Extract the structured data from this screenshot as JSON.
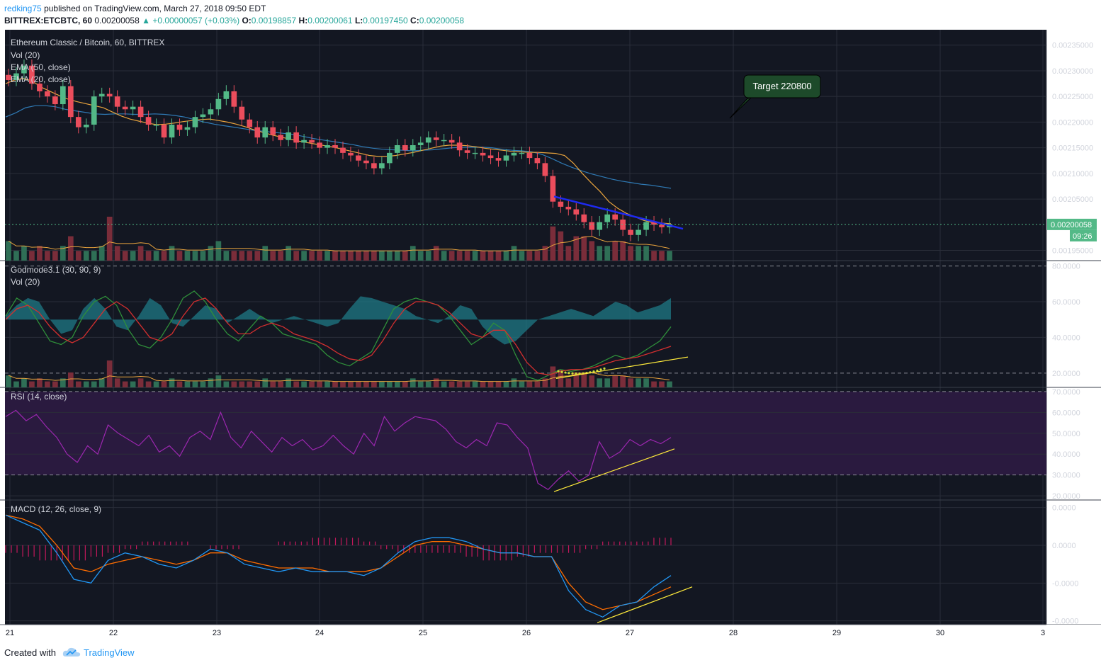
{
  "header": {
    "author": "redking75",
    "published": "published on TradingView.com, March 27, 2018 09:50 EDT",
    "symbol": "BITTREX:ETCBTC, 60",
    "last": "0.00200058",
    "change": "▲ +0.00000057 (+0.03%)",
    "o_label": "O:",
    "o": "0.00198857",
    "h_label": "H:",
    "h": "0.00200061",
    "l_label": "L:",
    "l": "0.00197450",
    "c_label": "C:",
    "c": "0.00200058"
  },
  "footer": {
    "created": "Created with",
    "brand": "TradingView"
  },
  "colors": {
    "background": "#131722",
    "grid": "#2a2e39",
    "up": "#53b987",
    "down": "#eb4d5c",
    "ema50": "#2f7ab5",
    "ema20": "#e8a33d",
    "volma": "#e8a33d",
    "god_green": "#2f8f3a",
    "god_red": "#d32f2f",
    "god_fill": "#1f7a85",
    "rsi": "#9c27b0",
    "rsi_band": "#2a1a3f",
    "macd": "#2196f3",
    "signal": "#ff6d00",
    "hist": "#c2185b",
    "trend_yellow": "#ffeb3b",
    "trend_blue": "#1e2af0",
    "callout": "#1d4a2a"
  },
  "icons": {
    "logo": "tradingview-cloud-icon"
  },
  "chart_data": {
    "type": "candlestick",
    "title": "Ethereum Classic / Bitcoin, 60, BITTREX",
    "x_ticks": [
      "21",
      "22",
      "23",
      "24",
      "25",
      "26",
      "27",
      "28",
      "29",
      "30",
      "3"
    ],
    "price_axis": {
      "ticks": [
        "0.00235000",
        "0.00230000",
        "0.00225000",
        "0.00220000",
        "0.00215000",
        "0.00210000",
        "0.00205000",
        "0.00195000"
      ],
      "ylim": [
        0.00193,
        0.00238
      ],
      "last_price_label": "0.00200058",
      "countdown_label": "09:26"
    },
    "price_legend": [
      "Vol (20)",
      "EMA (50, close)",
      "EMA (20, close)"
    ],
    "close_series": [
      0.002282,
      0.002295,
      0.00231,
      0.002275,
      0.00226,
      0.00225,
      0.002235,
      0.00227,
      0.00221,
      0.00219,
      0.002195,
      0.00225,
      0.002255,
      0.00225,
      0.00223,
      0.002225,
      0.00223,
      0.00221,
      0.002195,
      0.002195,
      0.00217,
      0.002195,
      0.002185,
      0.00219,
      0.00221,
      0.002215,
      0.002225,
      0.002245,
      0.00226,
      0.00223,
      0.002205,
      0.00219,
      0.00217,
      0.00219,
      0.002175,
      0.002165,
      0.00218,
      0.00216,
      0.002165,
      0.00216,
      0.00215,
      0.002155,
      0.00215,
      0.00214,
      0.002135,
      0.002125,
      0.00212,
      0.00211,
      0.00212,
      0.00214,
      0.002155,
      0.002145,
      0.002155,
      0.00216,
      0.00217,
      0.002165,
      0.002165,
      0.00216,
      0.002145,
      0.00214,
      0.00214,
      0.002135,
      0.00213,
      0.002125,
      0.002135,
      0.00214,
      0.00214,
      0.00213,
      0.00212,
      0.002095,
      0.002045,
      0.002035,
      0.00203,
      0.00202,
      0.002005,
      0.00199,
      0.002005,
      0.00202,
      0.00201,
      0.00199,
      0.00198,
      0.00199,
      0.002005,
      0.002,
      0.001995,
      0.002001
    ],
    "ema50_series": [
      0.00221,
      0.002218,
      0.002228,
      0.002232,
      0.002232,
      0.00223,
      0.002225,
      0.002222,
      0.002219,
      0.002216,
      0.002215,
      0.002216,
      0.002216,
      0.002215,
      0.002215,
      0.002216,
      0.002215,
      0.002213,
      0.00221,
      0.002205,
      0.0022,
      0.002196,
      0.002193,
      0.00219,
      0.002187,
      0.002184,
      0.002182,
      0.00218,
      0.002178,
      0.002176,
      0.002172,
      0.002168,
      0.002165,
      0.002162,
      0.002159,
      0.002156,
      0.002152,
      0.002149,
      0.002147,
      0.002146,
      0.002145,
      0.002144,
      0.002145,
      0.002146,
      0.002148,
      0.00215,
      0.002151,
      0.002151,
      0.002151,
      0.00215,
      0.002147,
      0.002145,
      0.002144,
      0.002142,
      0.002137,
      0.002129,
      0.00212,
      0.002112,
      0.002105,
      0.002099,
      0.002094,
      0.002089,
      0.002085,
      0.002082,
      0.002079,
      0.002077,
      0.002074,
      0.002071
    ],
    "ema20_series": [
      0.002275,
      0.002282,
      0.002285,
      0.00228,
      0.002268,
      0.00226,
      0.002252,
      0.002245,
      0.00224,
      0.002236,
      0.002232,
      0.002228,
      0.00222,
      0.002212,
      0.002206,
      0.002202,
      0.002198,
      0.002195,
      0.002196,
      0.002198,
      0.002201,
      0.002203,
      0.002205,
      0.002206,
      0.002203,
      0.0022,
      0.002196,
      0.002191,
      0.002185,
      0.00218,
      0.002175,
      0.002171,
      0.002167,
      0.002163,
      0.00216,
      0.002157,
      0.002154,
      0.002151,
      0.002147,
      0.002143,
      0.002139,
      0.002135,
      0.002133,
      0.002133,
      0.002135,
      0.002138,
      0.002141,
      0.002145,
      0.002149,
      0.002153,
      0.002155,
      0.002155,
      0.002154,
      0.002152,
      0.002149,
      0.002147,
      0.002145,
      0.002143,
      0.002142,
      0.002141,
      0.002141,
      0.00214,
      0.002139,
      0.002135,
      0.00212,
      0.0021,
      0.002082,
      0.002065,
      0.002045,
      0.002032,
      0.002022,
      0.002015,
      0.002008,
      0.002004,
      0.002003,
      0.002002
    ],
    "volume_series": [
      4,
      2,
      3,
      2,
      3,
      2,
      2,
      3,
      5,
      2,
      2,
      2,
      3,
      9,
      3,
      2,
      2,
      3,
      2,
      2,
      2,
      3,
      2,
      2,
      2,
      2,
      3,
      4,
      2,
      2,
      2,
      2,
      2,
      3,
      2,
      2,
      3,
      2,
      2,
      2,
      2,
      2,
      2,
      2,
      2,
      2,
      2,
      2,
      2,
      2,
      2,
      2,
      3,
      2,
      2,
      3,
      2,
      2,
      2,
      2,
      2,
      2,
      2,
      2,
      2,
      3,
      2,
      2,
      2,
      3,
      7,
      6,
      3,
      5,
      5,
      4,
      3,
      3,
      4,
      4,
      3,
      3,
      3,
      2,
      2,
      2
    ],
    "annotation_callout": "Target 220800",
    "panes": [
      {
        "name": "Godmode3.1 (30, 90, 9)",
        "legend2": "Vol (20)",
        "ticks": [
          "80.0000",
          "60.0000",
          "40.0000",
          "20.0000"
        ],
        "ylim": [
          12,
          83
        ],
        "dashed_levels": [
          80,
          20
        ],
        "green_series": [
          52,
          62,
          58,
          48,
          38,
          36,
          40,
          52,
          60,
          63,
          58,
          45,
          36,
          34,
          40,
          50,
          62,
          66,
          60,
          50,
          42,
          38,
          45,
          52,
          48,
          42,
          40,
          38,
          36,
          30,
          26,
          24,
          28,
          32,
          44,
          56,
          60,
          62,
          60,
          58,
          52,
          44,
          36,
          40,
          48,
          44,
          30,
          18,
          16,
          19,
          22,
          21,
          22,
          24,
          27,
          30,
          28,
          30,
          34,
          38,
          46
        ],
        "red_series": [
          50,
          56,
          58,
          54,
          46,
          40,
          37,
          40,
          48,
          56,
          60,
          56,
          48,
          40,
          38,
          42,
          52,
          60,
          62,
          56,
          48,
          42,
          42,
          46,
          48,
          46,
          42,
          40,
          38,
          35,
          31,
          28,
          27,
          30,
          38,
          48,
          56,
          60,
          60,
          58,
          54,
          48,
          42,
          40,
          44,
          44,
          36,
          26,
          20,
          19,
          21,
          22,
          22,
          23,
          25,
          27,
          28,
          29,
          31,
          33,
          35
        ],
        "fill_series": [
          52,
          58,
          62,
          60,
          50,
          42,
          44,
          56,
          62,
          56,
          46,
          44,
          52,
          62,
          58,
          48,
          46,
          52,
          58,
          56,
          48,
          52,
          56,
          52,
          48,
          50,
          52,
          50,
          48,
          46,
          48,
          56,
          63,
          62,
          60,
          58,
          56,
          52,
          50,
          48,
          52,
          58,
          56,
          46,
          40,
          36,
          38,
          44,
          50,
          52,
          54,
          56,
          54,
          52,
          56,
          60,
          58,
          54,
          56,
          58,
          62
        ]
      },
      {
        "name": "RSI (14, close)",
        "ticks": [
          "70.0000",
          "60.0000",
          "50.0000",
          "40.0000",
          "30.0000",
          "20.0000"
        ],
        "ylim": [
          18,
          72
        ],
        "band": [
          30,
          70
        ],
        "series": [
          58,
          61,
          56,
          59,
          53,
          48,
          40,
          36,
          44,
          40,
          54,
          50,
          47,
          44,
          49,
          41,
          44,
          39,
          48,
          51,
          47,
          60,
          48,
          43,
          51,
          46,
          41,
          48,
          44,
          47,
          42,
          44,
          49,
          44,
          40,
          50,
          44,
          58,
          51,
          55,
          58,
          57,
          56,
          52,
          46,
          43,
          47,
          44,
          55,
          54,
          48,
          43,
          26,
          23,
          28,
          32,
          27,
          30,
          46,
          38,
          41,
          47,
          44,
          47,
          45,
          48
        ]
      },
      {
        "name": "MACD (12, 26, close, 9)",
        "ticks": [
          "0.0000",
          "0.0000",
          "-0.0000",
          "-0.0000"
        ],
        "ylim": [
          -21,
          12
        ],
        "macd_series": [
          8,
          6,
          4,
          -2,
          -9,
          -10,
          -4,
          -2,
          -3,
          -5,
          -6,
          -4,
          -1,
          -2,
          -5,
          -6,
          -7,
          -6,
          -7,
          -7,
          -7,
          -8,
          -6,
          -2,
          1,
          2,
          2,
          1,
          -1,
          -2,
          -2,
          -3,
          -3,
          -12,
          -17,
          -19,
          -16,
          -15,
          -11,
          -8
        ],
        "signal_series": [
          8,
          7,
          5,
          0,
          -6,
          -7,
          -5,
          -4,
          -3,
          -4,
          -5,
          -4,
          -2,
          -2,
          -4,
          -5,
          -6,
          -6,
          -6,
          -7,
          -7,
          -7,
          -6,
          -3,
          0,
          1,
          1,
          0,
          -1,
          -2,
          -2,
          -3,
          -3,
          -10,
          -15,
          -17,
          -16,
          -15,
          -13,
          -11
        ],
        "hist_series": [
          -2,
          -3,
          -4,
          -4,
          -4,
          -3,
          -2,
          -1,
          1,
          1,
          1,
          0,
          -1,
          -1,
          0,
          0,
          1,
          1,
          2,
          2,
          2,
          1,
          -1,
          -2,
          -2,
          -2,
          -2,
          -3,
          -4,
          -4,
          -3,
          -2,
          -2,
          -2,
          -1,
          1,
          1,
          1,
          2,
          2
        ]
      }
    ]
  }
}
